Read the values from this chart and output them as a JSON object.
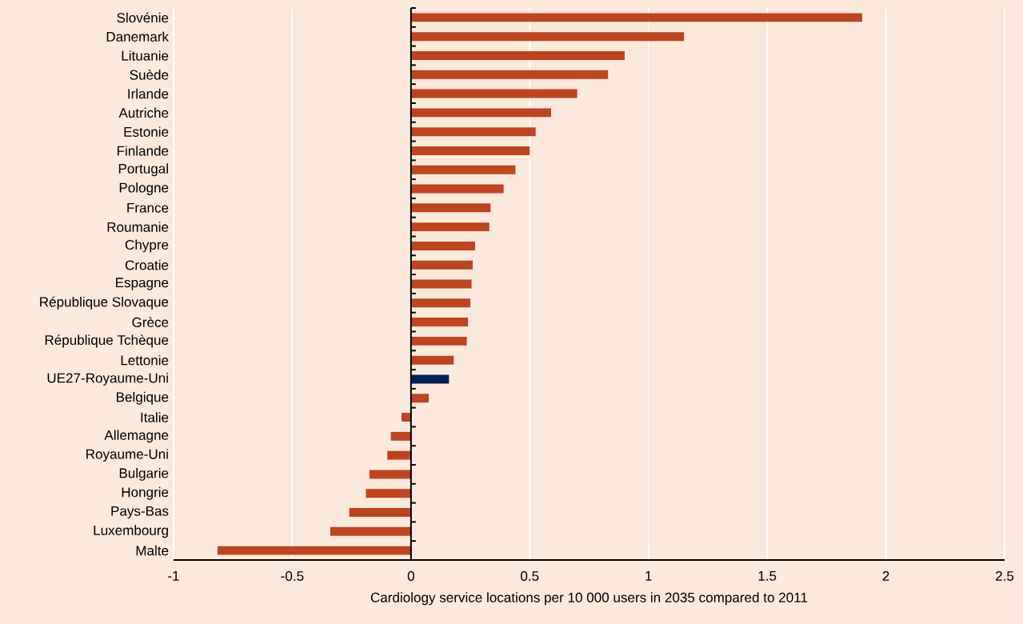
{
  "chart_data": {
    "type": "bar",
    "orientation": "horizontal",
    "xlabel": "Cardiology service locations per 10 000 users in 2035 compared to 2011",
    "categories": [
      "Slovénie",
      "Danemark",
      "Lituanie",
      "Suède",
      "Irlande",
      "Autriche",
      "Estonie",
      "Finlande",
      "Portugal",
      "Pologne",
      "France",
      "Roumanie",
      "Chypre",
      "Croatie",
      "Espagne",
      "République Slovaque",
      "Grèce",
      "République Tchèque",
      "Lettonie",
      "UE27-Royaume-Uni",
      "Belgique",
      "Italie",
      "Allemagne",
      "Royaume-Uni",
      "Bulgarie",
      "Hongrie",
      "Pays-Bas",
      "Luxembourg",
      "Malte"
    ],
    "values": [
      1.9,
      1.15,
      0.9,
      0.83,
      0.7,
      0.59,
      0.525,
      0.5,
      0.44,
      0.39,
      0.335,
      0.33,
      0.27,
      0.26,
      0.255,
      0.25,
      0.24,
      0.235,
      0.18,
      0.16,
      0.075,
      -0.04,
      -0.085,
      -0.1,
      -0.175,
      -0.19,
      -0.26,
      -0.34,
      -0.815
    ],
    "colors": [
      "#c0441f",
      "#c0441f",
      "#c0441f",
      "#c0441f",
      "#c0441f",
      "#c0441f",
      "#c0441f",
      "#c0441f",
      "#c0441f",
      "#c0441f",
      "#c0441f",
      "#c0441f",
      "#c0441f",
      "#c0441f",
      "#c0441f",
      "#c0441f",
      "#c0441f",
      "#c0441f",
      "#c0441f",
      "#00205b",
      "#c0441f",
      "#c0441f",
      "#c0441f",
      "#c0441f",
      "#c0441f",
      "#c0441f",
      "#c0441f",
      "#c0441f",
      "#c0441f"
    ],
    "xlim": [
      -1,
      2.5
    ],
    "xticks": [
      -1,
      -0.5,
      0,
      0.5,
      1,
      1.5,
      2,
      2.5
    ],
    "grid": "x"
  }
}
